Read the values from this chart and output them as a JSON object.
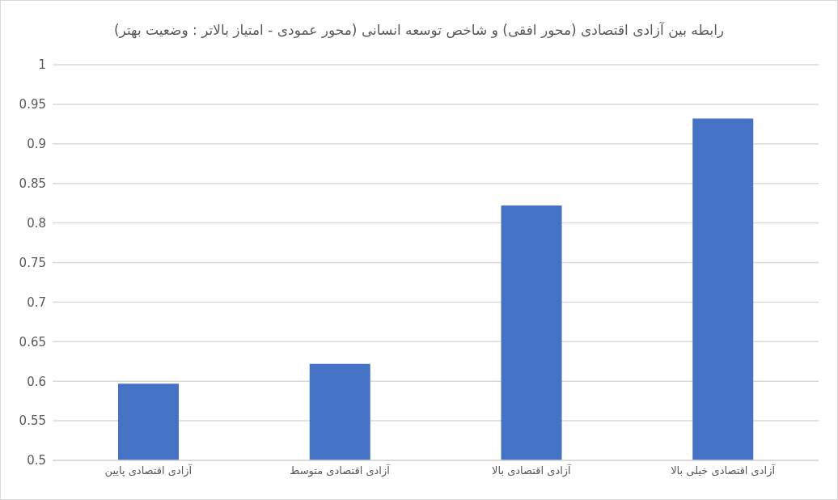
{
  "chart_data": {
    "type": "bar",
    "title": "رابطه بین آزادی اقتصادی (محور افقی) و شاخص توسعه انسانی (محور عمودی - امتیاز بالاتر : وضعیت بهتر)",
    "categories": [
      "آزادی اقتصادی پایین",
      "آزادی اقتصادی متوسط",
      "آزادی اقتصادی بالا",
      "آزادی اقتصادی خیلی بالا"
    ],
    "values": [
      0.597,
      0.622,
      0.822,
      0.932
    ],
    "color": "#4472c4",
    "ylim": [
      0.5,
      1
    ],
    "yticks": [
      0.5,
      0.55,
      0.6,
      0.65,
      0.7,
      0.75,
      0.8,
      0.85,
      0.9,
      0.95,
      1
    ],
    "grid": "y"
  }
}
